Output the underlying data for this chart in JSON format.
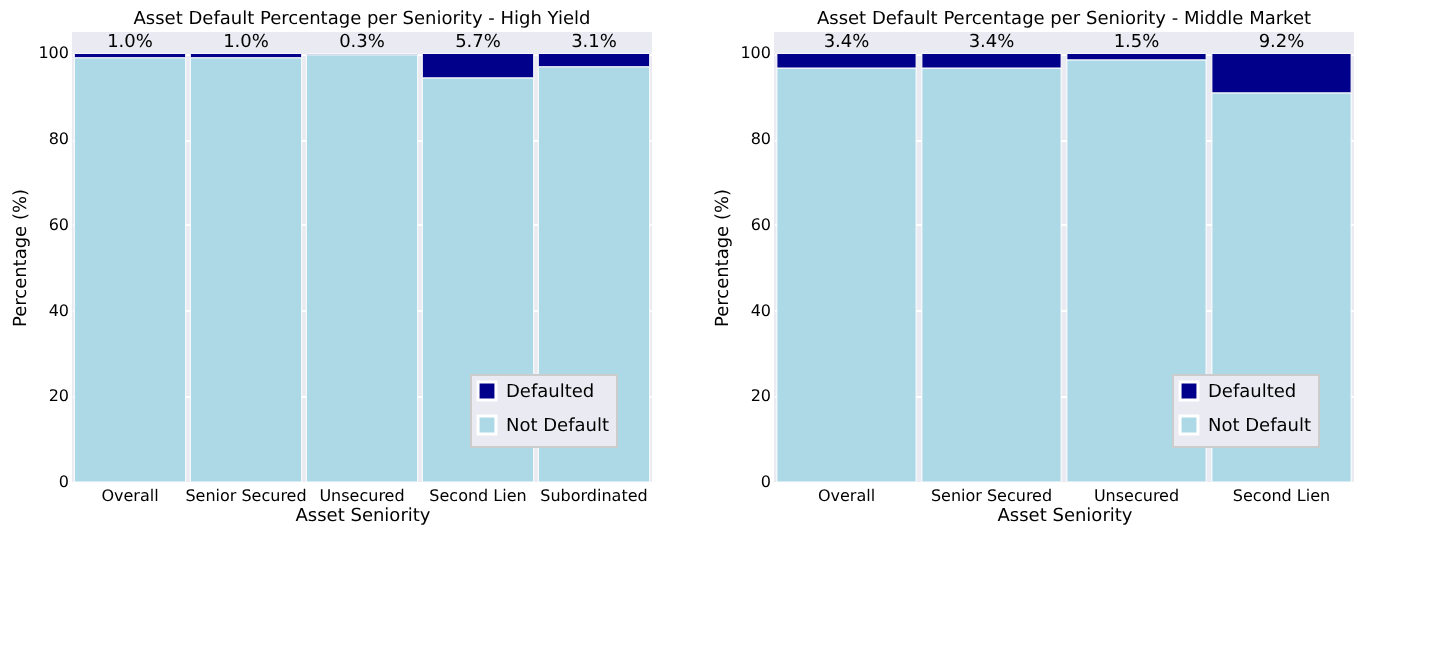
{
  "chart_data": [
    {
      "type": "bar",
      "title": "Asset Default Percentage per Seniority - High Yield",
      "xlabel": "Asset Seniority",
      "ylabel": "Percentage (%)",
      "categories": [
        "Overall",
        "Senior Secured",
        "Unsecured",
        "Second Lien",
        "Subordinated"
      ],
      "stacked": true,
      "series": [
        {
          "name": "Not Default",
          "color": "#add8e6",
          "values": [
            99.0,
            99.0,
            99.7,
            94.3,
            96.9
          ]
        },
        {
          "name": "Defaulted",
          "color": "#00008b",
          "values": [
            1.0,
            1.0,
            0.3,
            5.7,
            3.1
          ],
          "value_labels": [
            "1.0%",
            "1.0%",
            "0.3%",
            "5.7%",
            "3.1%"
          ]
        }
      ],
      "ylim": [
        0,
        105
      ],
      "yticks": [
        0,
        20,
        40,
        60,
        80,
        100
      ],
      "grid": "y",
      "legend": "bottom right"
    },
    {
      "type": "bar",
      "title": "Asset Default Percentage per Seniority - Middle Market",
      "xlabel": "Asset Seniority",
      "ylabel": "Percentage (%)",
      "categories": [
        "Overall",
        "Senior Secured",
        "Unsecured",
        "Second Lien"
      ],
      "stacked": true,
      "series": [
        {
          "name": "Not Default",
          "color": "#add8e6",
          "values": [
            96.6,
            96.6,
            98.5,
            90.8
          ]
        },
        {
          "name": "Defaulted",
          "color": "#00008b",
          "values": [
            3.4,
            3.4,
            1.5,
            9.2
          ],
          "value_labels": [
            "3.4%",
            "3.4%",
            "1.5%",
            "9.2%"
          ]
        }
      ],
      "ylim": [
        0,
        105
      ],
      "yticks": [
        0,
        20,
        40,
        60,
        80,
        100
      ],
      "grid": "y",
      "legend": "bottom right"
    }
  ]
}
